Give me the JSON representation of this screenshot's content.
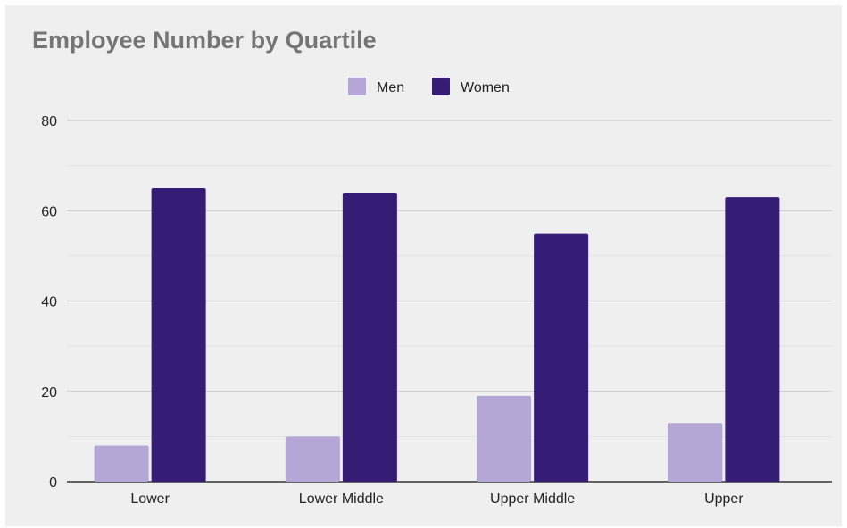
{
  "chart_data": {
    "type": "bar",
    "title": "Employee Number by Quartile",
    "xlabel": "",
    "ylabel": "",
    "categories": [
      "Lower",
      "Lower Middle",
      "Upper Middle",
      "Upper"
    ],
    "series": [
      {
        "name": "Men",
        "values": [
          8,
          10,
          19,
          13
        ],
        "color": "#b4a7d6"
      },
      {
        "name": "Women",
        "values": [
          65,
          64,
          55,
          63
        ],
        "color": "#351c75"
      }
    ],
    "ylim": [
      0,
      80
    ],
    "yticks": [
      0,
      20,
      40,
      60,
      80
    ],
    "grid": true,
    "minor_grid": true,
    "legend_position": "top-center"
  }
}
